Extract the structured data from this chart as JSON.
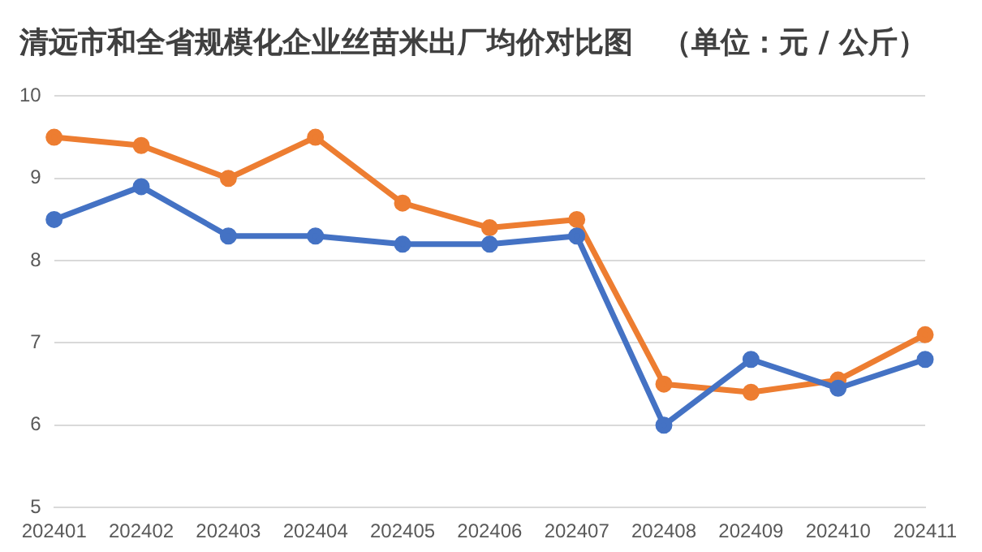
{
  "chart_data": {
    "type": "line",
    "title": "清远市和全省规模化企业丝苗米出厂均价对比图　（单位：元 / 公斤）",
    "categories": [
      "202401",
      "202402",
      "202403",
      "202404",
      "202405",
      "202406",
      "202407",
      "202408",
      "202409",
      "202410",
      "202411"
    ],
    "series": [
      {
        "color": "#4472c4",
        "values": [
          8.5,
          8.9,
          8.3,
          8.3,
          8.2,
          8.2,
          8.3,
          6.0,
          6.8,
          6.45,
          6.8
        ]
      },
      {
        "color": "#ed7d31",
        "values": [
          9.5,
          9.4,
          9.0,
          9.5,
          8.7,
          8.4,
          8.5,
          6.5,
          6.4,
          6.55,
          7.1
        ]
      }
    ],
    "ylim": [
      5,
      10
    ],
    "yticks": [
      5,
      6,
      7,
      8,
      9,
      10
    ],
    "grid": "y",
    "legend": false,
    "marker": "circle",
    "line_style": "solid"
  }
}
